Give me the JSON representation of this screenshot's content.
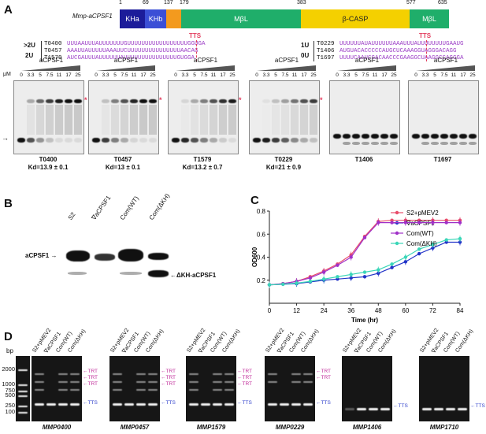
{
  "panel_labels": {
    "a": "A",
    "b": "B",
    "c": "C",
    "d": "D"
  },
  "domain_map": {
    "construct": "Mmp-aCPSF1",
    "positions": [
      "1",
      "69",
      "137",
      "179",
      "383",
      "577",
      "635"
    ],
    "domains": [
      {
        "label": "KHa",
        "color": "#1c1c9a"
      },
      {
        "label": "KHb",
        "color": "#3b4fd6"
      },
      {
        "label": "",
        "color": "#f39a1e"
      },
      {
        "label": "MβL",
        "color": "#1fae6a"
      },
      {
        "label": "β-CASP",
        "color": "#f4d000"
      },
      {
        "label": "MβL",
        "color": "#1fae6a"
      }
    ]
  },
  "sequences": {
    "left_group": {
      "labels": [
        ">2U",
        "2U"
      ],
      "tts": "TTS",
      "rows": [
        {
          "id": "T0400",
          "seq": "UUUAAUUUAUUUUUUUGUUUUUUUUUUUUUUUUUGGUGA"
        },
        {
          "id": "T0457",
          "seq": "AAAUUAUUUUUAAAUUCUUUUUUUUUUUUUUUAACAG"
        },
        {
          "id": "T1579",
          "seq": "AUCGAUUUAUUUUUUAUUUUUUUUUUUUUUUGUGGA"
        }
      ]
    },
    "right_group": {
      "labels": [
        "1U",
        "0U"
      ],
      "tts": "TTS",
      "rows": [
        {
          "id": "T0229",
          "seq": "UUUUUUAUAUUUUUUAAAUUUAUUUUUUUUGAAUG"
        },
        {
          "id": "T1406",
          "seq": "AUGUACACCCCCAUGCUCAAAGGUAGGGACAGG"
        },
        {
          "id": "T1697",
          "seq": "UUUUCAAUCGACAACCCGAAGGCUAAGGCCAGGGA"
        }
      ]
    }
  },
  "emsa": {
    "protein": "aCPSF1",
    "unit": "μM",
    "concentrations": [
      "0",
      "3.3",
      "5",
      "7.5",
      "11",
      "17",
      "25"
    ],
    "gels": [
      {
        "name": "T0400",
        "kd": "Kd=13.9 ± 0.1"
      },
      {
        "name": "T0457",
        "kd": "Kd=13 ± 0.1"
      },
      {
        "name": "T1579",
        "kd": "Kd=13.2 ± 0.7"
      },
      {
        "name": "T0229",
        "kd": "Kd=21 ± 0.9"
      },
      {
        "name": "T1406",
        "kd": ""
      },
      {
        "name": "T1697",
        "kd": ""
      }
    ],
    "star": "*"
  },
  "western": {
    "lanes": [
      "S2",
      "∇aCPSF1",
      "Com(WT)",
      "Com(ΔKH)"
    ],
    "label_left": "aCPSF1",
    "label_right": "ΔKH-aCPSF1"
  },
  "growth": {
    "chart_data": {
      "type": "line",
      "xlabel": "Time  (hr)",
      "ylabel": "OD600",
      "xlim": [
        0,
        84
      ],
      "ylim": [
        0,
        0.8
      ],
      "xticks": [
        "0",
        "12",
        "24",
        "36",
        "48",
        "60",
        "72",
        "84"
      ],
      "yticks": [
        "0.2",
        "0.4",
        "0.6",
        "0.8"
      ],
      "legend_position": "top-right",
      "series": [
        {
          "name": "S2+pMEV2",
          "color": "#e84c6a",
          "x": [
            0,
            6,
            12,
            18,
            24,
            30,
            36,
            42,
            48,
            54,
            60,
            66,
            72,
            78,
            84
          ],
          "y": [
            0.16,
            0.17,
            0.19,
            0.23,
            0.28,
            0.34,
            0.42,
            0.58,
            0.71,
            0.72,
            0.72,
            0.72,
            0.72,
            0.72,
            0.72
          ]
        },
        {
          "name": "∇aCPSF1",
          "color": "#2233c8",
          "x": [
            0,
            6,
            12,
            18,
            24,
            30,
            36,
            42,
            48,
            54,
            60,
            66,
            72,
            78,
            84
          ],
          "y": [
            0.16,
            0.165,
            0.17,
            0.185,
            0.2,
            0.21,
            0.22,
            0.23,
            0.26,
            0.31,
            0.36,
            0.43,
            0.48,
            0.53,
            0.53
          ]
        },
        {
          "name": "Com(WT)",
          "color": "#a030c8",
          "x": [
            0,
            6,
            12,
            18,
            24,
            30,
            36,
            42,
            48,
            54,
            60,
            66,
            72,
            78,
            84
          ],
          "y": [
            0.16,
            0.17,
            0.19,
            0.22,
            0.27,
            0.33,
            0.4,
            0.57,
            0.7,
            0.7,
            0.7,
            0.7,
            0.7,
            0.7,
            0.7
          ]
        },
        {
          "name": "Com(ΔKH)",
          "color": "#3ad6b8",
          "x": [
            0,
            6,
            12,
            18,
            24,
            30,
            36,
            42,
            48,
            54,
            60,
            66,
            72,
            78,
            84
          ],
          "y": [
            0.16,
            0.165,
            0.175,
            0.19,
            0.21,
            0.23,
            0.25,
            0.27,
            0.29,
            0.34,
            0.4,
            0.47,
            0.51,
            0.55,
            0.56
          ]
        }
      ]
    }
  },
  "rt_pcr": {
    "ladder_unit": "bp",
    "ladder": [
      "2000",
      "1000",
      "750",
      "500",
      "250",
      "100"
    ],
    "lanes": [
      "S2+pMEV2",
      "∇aCPSF1",
      "Com(WT)",
      "Com(ΔKH)"
    ],
    "gels": [
      {
        "name": "MMP0400",
        "marks": [
          "TRT",
          "TRT",
          "TRT",
          "TTS"
        ]
      },
      {
        "name": "MMP0457",
        "marks": [
          "TRT",
          "TRT",
          "TRT",
          "TTS"
        ]
      },
      {
        "name": "MMP1579",
        "marks": [
          "TRT",
          "TRT",
          "TRT",
          "TTS"
        ]
      },
      {
        "name": "MMP0229",
        "marks": [
          "TRT",
          "TRT",
          "TTS"
        ]
      },
      {
        "name": "MMP1406",
        "marks": [
          "TTS"
        ]
      },
      {
        "name": "MMP1710",
        "marks": [
          "TTS"
        ]
      }
    ]
  }
}
